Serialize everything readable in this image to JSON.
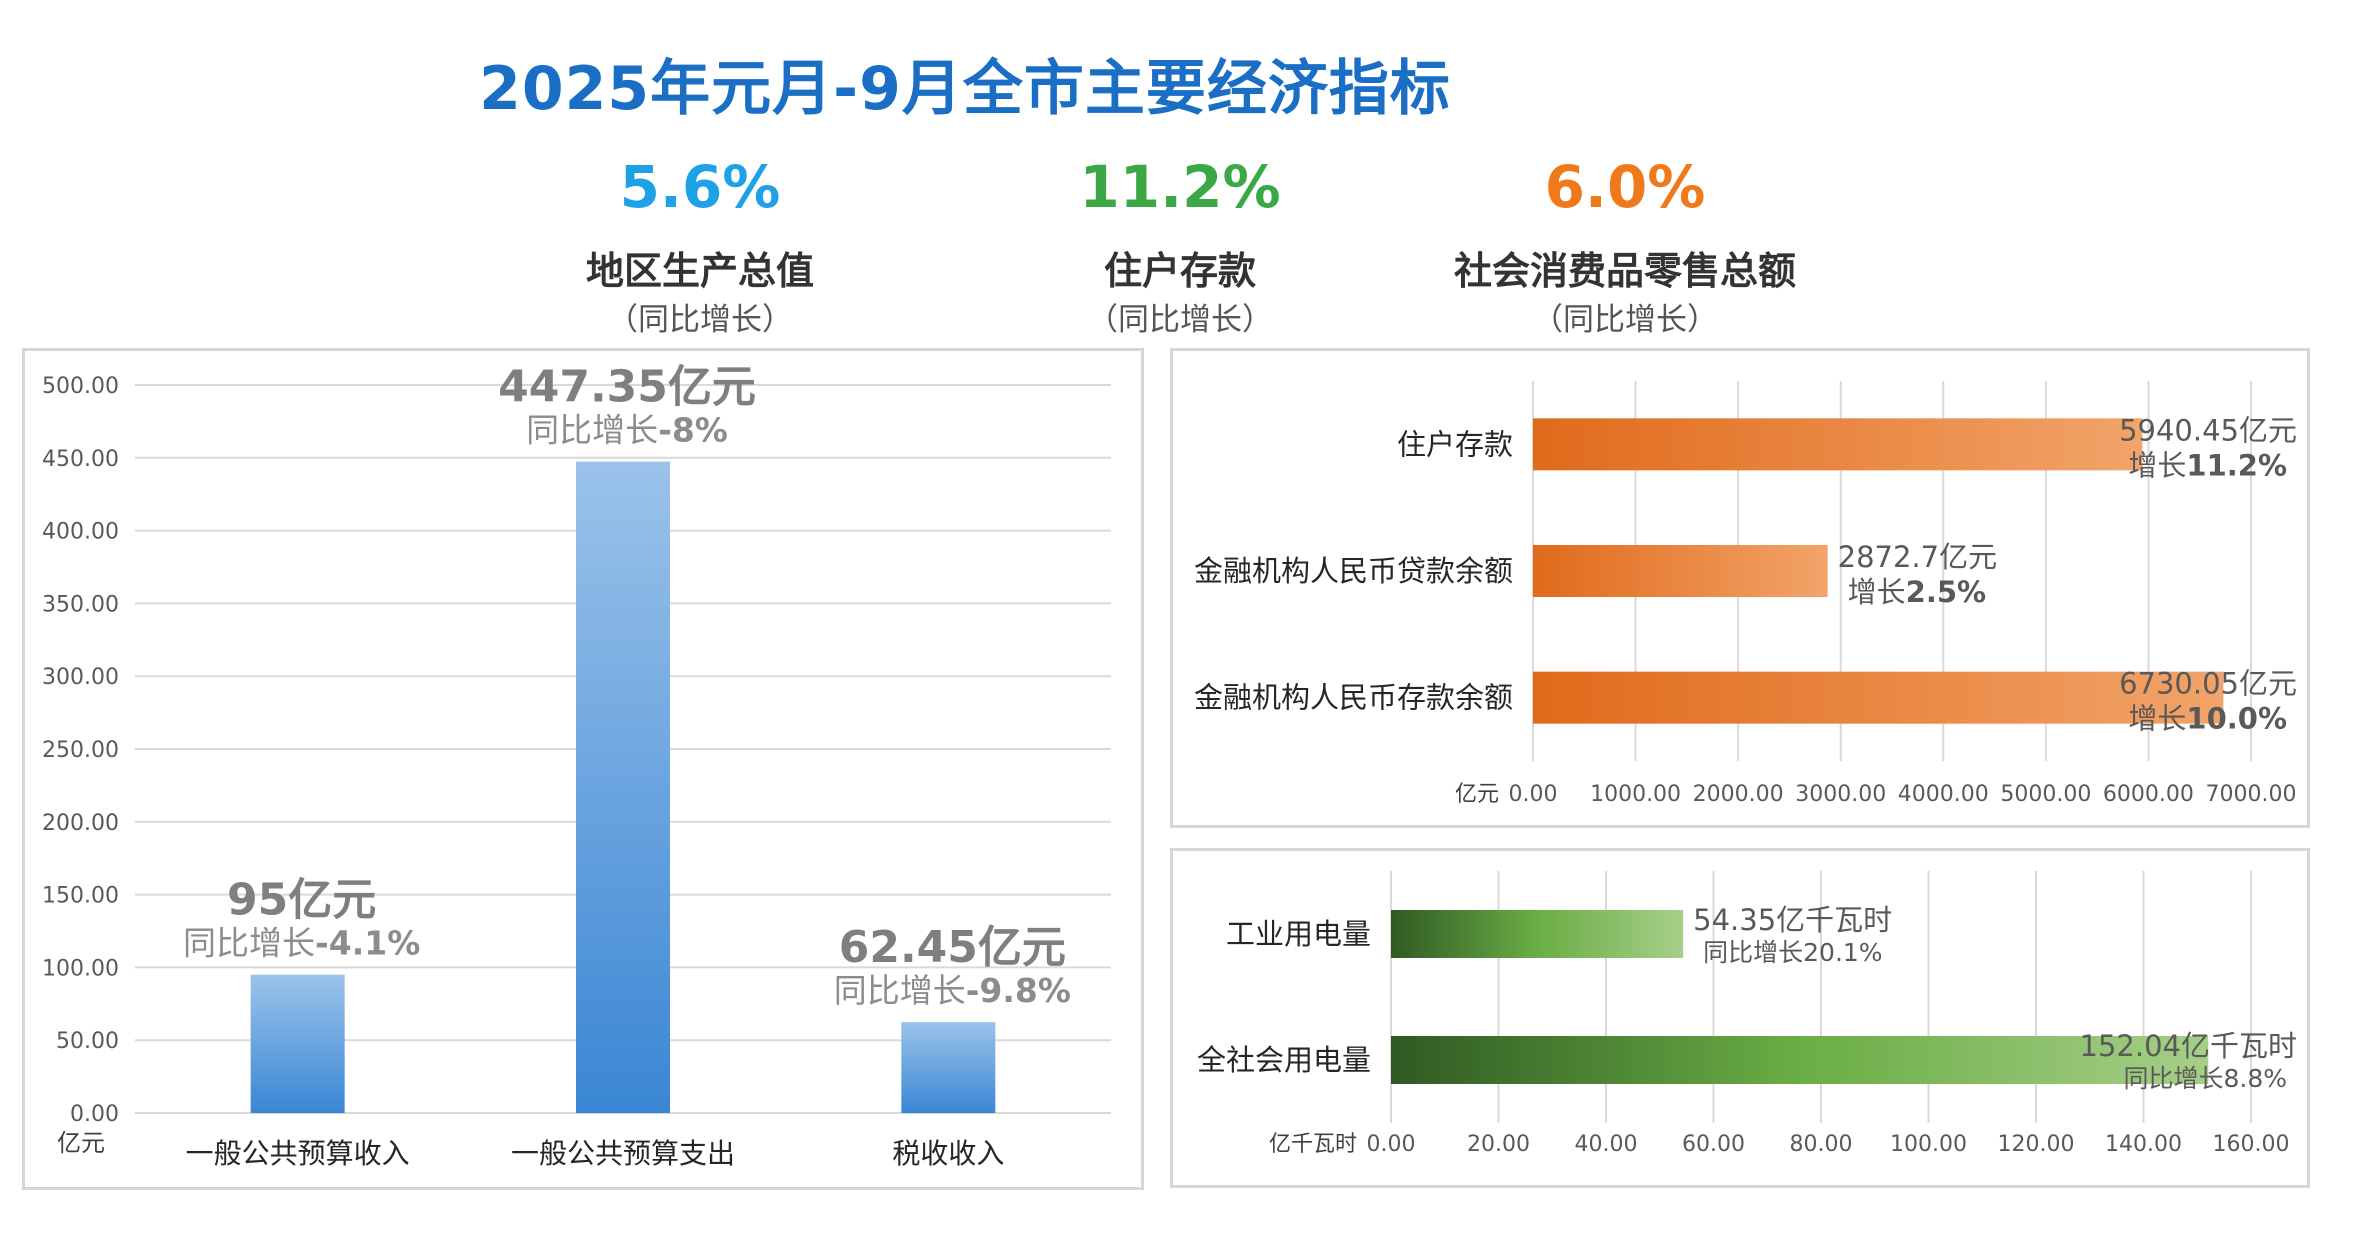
{
  "title": "2025年元月-9月全市主要经济指标",
  "kpis": [
    {
      "value": "5.6%",
      "name": "地区生产总值",
      "sub": "（同比增长）",
      "color": "#1ea1e6"
    },
    {
      "value": "11.2%",
      "name": "住户存款",
      "sub": "（同比增长）",
      "color": "#3ca845"
    },
    {
      "value": "6.0%",
      "name": "社会消费品零售总额",
      "sub": "（同比增长）",
      "color": "#ef7a1c"
    }
  ],
  "chart_data": [
    {
      "type": "bar",
      "unit_label": "亿元",
      "categories": [
        "一般公共预算收入",
        "一般公共预算支出",
        "税收收入"
      ],
      "values": [
        95,
        447.35,
        62.45
      ],
      "value_labels": [
        "95亿元",
        "447.35亿元",
        "62.45亿元"
      ],
      "growth_labels": [
        {
          "prefix": "同比增长",
          "value": "-4.1%"
        },
        {
          "prefix": "同比增长",
          "value": "-8%"
        },
        {
          "prefix": "同比增长",
          "value": "-9.8%"
        }
      ],
      "ylim": [
        0,
        500
      ],
      "yticks": [
        "0.00",
        "50.00",
        "100.00",
        "150.00",
        "200.00",
        "250.00",
        "300.00",
        "350.00",
        "400.00",
        "450.00",
        "500.00"
      ],
      "grid": true,
      "colors": {
        "top": "#9bc3ea",
        "bottom": "#3a86d4"
      }
    },
    {
      "type": "bar",
      "orientation": "horizontal",
      "unit_label": "亿元",
      "categories": [
        "住户存款",
        "金融机构人民币贷款余额",
        "金融机构人民币存款余额"
      ],
      "values": [
        5940.45,
        2872.7,
        6730.05
      ],
      "value_labels": [
        "5940.45亿元",
        "2872.7亿元",
        "6730.05亿元"
      ],
      "growth_labels": [
        {
          "prefix": "增长",
          "value": "11.2%"
        },
        {
          "prefix": "增长",
          "value": "2.5%"
        },
        {
          "prefix": "增长",
          "value": "10.0%"
        }
      ],
      "xlim": [
        0,
        7000
      ],
      "xticks": [
        "0.00",
        "1000.00",
        "2000.00",
        "3000.00",
        "4000.00",
        "5000.00",
        "6000.00",
        "7000.00"
      ],
      "grid": true,
      "colors": {
        "left": "#e06a1a",
        "right": "#f2a46a"
      }
    },
    {
      "type": "bar",
      "orientation": "horizontal",
      "unit_label": "亿千瓦时",
      "categories": [
        "工业用电量",
        "全社会用电量"
      ],
      "values": [
        54.35,
        152.04
      ],
      "value_labels": [
        "54.35亿千瓦时",
        "152.04亿千瓦时"
      ],
      "growth_labels": [
        {
          "prefix": "同比增长",
          "value": "20.1%"
        },
        {
          "prefix": "同比增长",
          "value": "8.8%"
        }
      ],
      "xlim": [
        0,
        160
      ],
      "xticks": [
        "0.00",
        "20.00",
        "40.00",
        "60.00",
        "80.00",
        "100.00",
        "120.00",
        "140.00",
        "160.00"
      ],
      "grid": true,
      "colors": {
        "left": "#2f5a23",
        "mid": "#6aad45",
        "right": "#a6cf88"
      }
    }
  ]
}
